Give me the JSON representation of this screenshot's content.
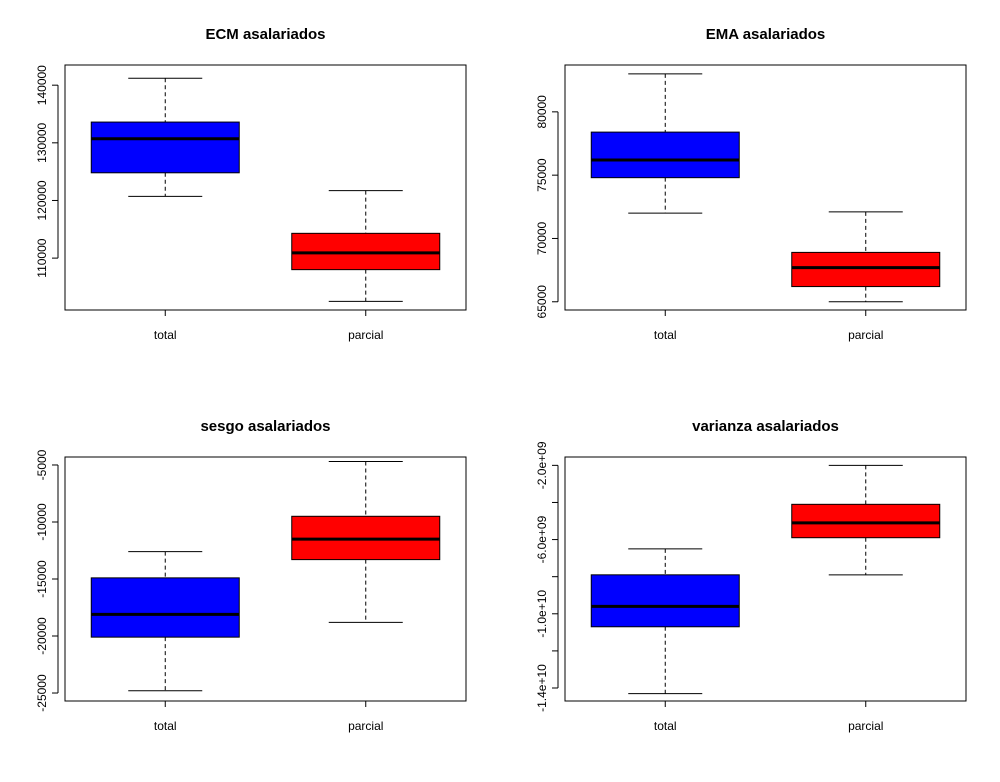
{
  "chart_data": [
    {
      "type": "boxplot",
      "title": "ECM asalariados",
      "categories": [
        "total",
        "parcial"
      ],
      "colors": [
        "#0000ff",
        "#ff0000"
      ],
      "ylim": [
        101000,
        143500
      ],
      "yticks": [
        110000,
        120000,
        130000,
        140000
      ],
      "ytick_labels": [
        "110000",
        "120000",
        "130000",
        "140000"
      ],
      "boxes": [
        {
          "whisker_low": 120700,
          "q1": 124800,
          "median": 130700,
          "q3": 133600,
          "whisker_high": 141200
        },
        {
          "whisker_low": 102500,
          "q1": 108000,
          "median": 110900,
          "q3": 114300,
          "whisker_high": 121700
        }
      ]
    },
    {
      "type": "boxplot",
      "title": "EMA asalariados",
      "categories": [
        "total",
        "parcial"
      ],
      "colors": [
        "#0000ff",
        "#ff0000"
      ],
      "ylim": [
        64350,
        83700
      ],
      "yticks": [
        65000,
        70000,
        75000,
        80000
      ],
      "ytick_labels": [
        "65000",
        "70000",
        "75000",
        "80000"
      ],
      "boxes": [
        {
          "whisker_low": 72000,
          "q1": 74800,
          "median": 76200,
          "q3": 78400,
          "whisker_high": 83000
        },
        {
          "whisker_low": 65000,
          "q1": 66200,
          "median": 67700,
          "q3": 68900,
          "whisker_high": 72100
        }
      ]
    },
    {
      "type": "boxplot",
      "title": "sesgo asalariados",
      "categories": [
        "total",
        "parcial"
      ],
      "colors": [
        "#0000ff",
        "#ff0000"
      ],
      "ylim": [
        -25700,
        -4300
      ],
      "yticks": [
        -25000,
        -20000,
        -15000,
        -10000,
        -5000
      ],
      "ytick_labels": [
        "-25000",
        "-20000",
        "-15000",
        "-10000",
        "-5000"
      ],
      "boxes": [
        {
          "whisker_low": -24800,
          "q1": -20100,
          "median": -18100,
          "q3": -14900,
          "whisker_high": -12600
        },
        {
          "whisker_low": -18800,
          "q1": -13300,
          "median": -11500,
          "q3": -9500,
          "whisker_high": -4700
        }
      ]
    },
    {
      "type": "boxplot",
      "title": "varianza asalariados",
      "categories": [
        "total",
        "parcial"
      ],
      "colors": [
        "#0000ff",
        "#ff0000"
      ],
      "ylim": [
        -14700000000.0,
        -1550000000.0
      ],
      "yticks": [
        -14000000000.0,
        -12000000000.0,
        -10000000000.0,
        -8000000000.0,
        -6000000000.0,
        -4000000000.0,
        -2000000000.0
      ],
      "ytick_labels": [
        "-1.4e+10",
        "",
        "-1.0e+10",
        "",
        "-6.0e+09",
        "",
        "-2.0e+09"
      ],
      "boxes": [
        {
          "whisker_low": -14300000000.0,
          "q1": -10700000000.0,
          "median": -9600000000.0,
          "q3": -7900000000.0,
          "whisker_high": -6500000000.0
        },
        {
          "whisker_low": -7900000000.0,
          "q1": -5900000000.0,
          "median": -5100000000.0,
          "q3": -4100000000.0,
          "whisker_high": -2000000000.0
        }
      ]
    }
  ]
}
